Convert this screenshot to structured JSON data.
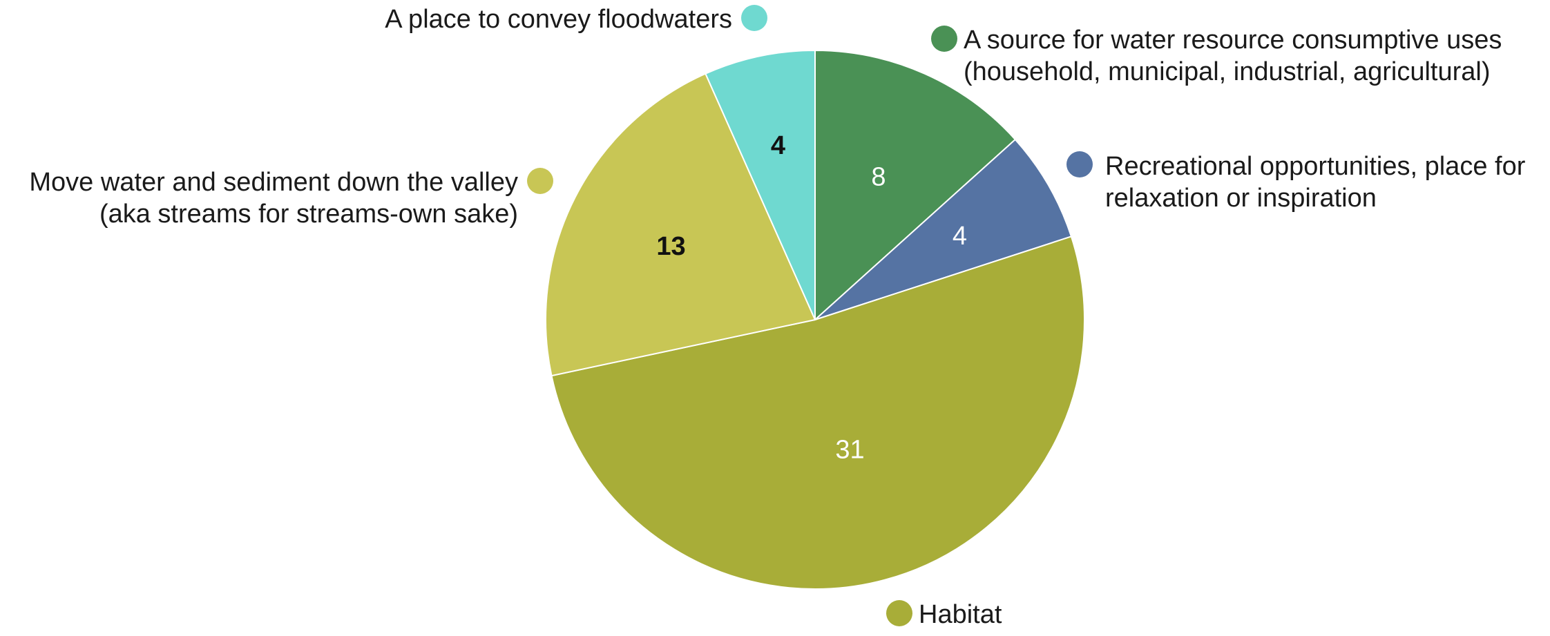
{
  "chart_data": {
    "type": "pie",
    "title": "",
    "slices": [
      {
        "label": "A source for water resource consumptive uses (household, municipal, industrial, agricultural)",
        "label_lines": [
          "A source for water resource consumptive uses",
          "(household, municipal, industrial, agricultural)"
        ],
        "value": 8,
        "color": "#4a9155",
        "value_text_color": "#ffffff",
        "legend_side": "right"
      },
      {
        "label": "Recreational opportunities, place for relaxation or inspiration",
        "label_lines": [
          "Recreational opportunities, place for",
          "relaxation or inspiration"
        ],
        "value": 4,
        "color": "#5573a3",
        "value_text_color": "#ffffff",
        "legend_side": "right"
      },
      {
        "label": "Habitat",
        "label_lines": [
          "Habitat"
        ],
        "value": 31,
        "color": "#a8ad38",
        "value_text_color": "#ffffff",
        "legend_side": "bottom"
      },
      {
        "label": "Move water and sediment down the valley (aka streams for streams-own sake)",
        "label_lines": [
          "Move water and sediment down the valley",
          "(aka streams for streams-own sake)"
        ],
        "value": 13,
        "color": "#c8c655",
        "value_text_color": "#111111",
        "legend_side": "left"
      },
      {
        "label": "A place to convey floodwaters",
        "label_lines": [
          "A place to convey floodwaters"
        ],
        "value": 4,
        "color": "#6fd9d0",
        "value_text_color": "#111111",
        "legend_side": "left"
      }
    ],
    "start_angle": "12 o'clock",
    "direction": "clockwise",
    "legend": "markers beside slices"
  }
}
